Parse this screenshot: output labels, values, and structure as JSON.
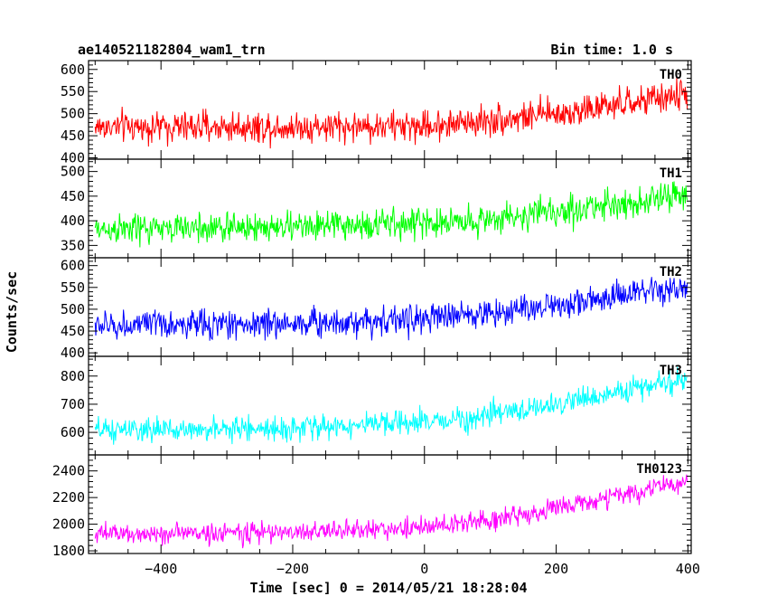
{
  "chart_data": {
    "type": "line",
    "title": "ae140521182804_wam1_trn",
    "subtitle": "Bin time: 1.0 s",
    "xlabel": "Time [sec] 0 = 2014/05/21 18:28:04",
    "ylabel": "Counts/sec",
    "xlim": [
      -510,
      405
    ],
    "x_ticks": [
      -400,
      -200,
      0,
      200,
      400
    ],
    "x_tick_labels": [
      "−400",
      "−200",
      "0",
      "200",
      "400"
    ],
    "grid": false,
    "legend": "none",
    "panels": [
      {
        "name": "TH0",
        "color": "#ff0000",
        "ylim": [
          397,
          620
        ],
        "y_ticks": [
          400,
          450,
          500,
          550,
          600
        ],
        "y_tick_labels": [
          "400",
          "450",
          "500",
          "550",
          "600"
        ],
        "trend": [
          [
            -500,
            470
          ],
          [
            -200,
            470
          ],
          [
            0,
            472
          ],
          [
            100,
            485
          ],
          [
            200,
            500
          ],
          [
            300,
            520
          ],
          [
            400,
            545
          ]
        ],
        "noise_sigma": 25
      },
      {
        "name": "TH1",
        "color": "#00ff00",
        "ylim": [
          325,
          525
        ],
        "y_ticks": [
          350,
          400,
          450,
          500
        ],
        "y_tick_labels": [
          "350",
          "400",
          "450",
          "500"
        ],
        "trend": [
          [
            -500,
            382
          ],
          [
            -200,
            388
          ],
          [
            0,
            395
          ],
          [
            100,
            403
          ],
          [
            200,
            418
          ],
          [
            300,
            435
          ],
          [
            400,
            452
          ]
        ],
        "noise_sigma": 22
      },
      {
        "name": "TH2",
        "color": "#0000ff",
        "ylim": [
          392,
          618
        ],
        "y_ticks": [
          400,
          450,
          500,
          550,
          600
        ],
        "y_tick_labels": [
          "400",
          "450",
          "500",
          "550",
          "600"
        ],
        "trend": [
          [
            -500,
            462
          ],
          [
            -200,
            468
          ],
          [
            0,
            478
          ],
          [
            100,
            492
          ],
          [
            200,
            510
          ],
          [
            300,
            530
          ],
          [
            400,
            548
          ]
        ],
        "noise_sigma": 24
      },
      {
        "name": "TH3",
        "color": "#00ffff",
        "ylim": [
          520,
          870
        ],
        "y_ticks": [
          600,
          700,
          800
        ],
        "y_tick_labels": [
          "600",
          "700",
          "800"
        ],
        "trend": [
          [
            -500,
            605
          ],
          [
            -200,
            615
          ],
          [
            0,
            635
          ],
          [
            100,
            660
          ],
          [
            200,
            700
          ],
          [
            300,
            745
          ],
          [
            400,
            790
          ]
        ],
        "noise_sigma": 30
      },
      {
        "name": "TH0123",
        "color": "#ff00ff",
        "ylim": [
          1780,
          2520
        ],
        "y_ticks": [
          1800,
          2000,
          2200,
          2400
        ],
        "y_tick_labels": [
          "1800",
          "2000",
          "2200",
          "2400"
        ],
        "trend": [
          [
            -500,
            1925
          ],
          [
            -200,
            1940
          ],
          [
            0,
            1975
          ],
          [
            100,
            2030
          ],
          [
            200,
            2120
          ],
          [
            300,
            2220
          ],
          [
            400,
            2320
          ]
        ],
        "noise_sigma": 55
      }
    ]
  }
}
